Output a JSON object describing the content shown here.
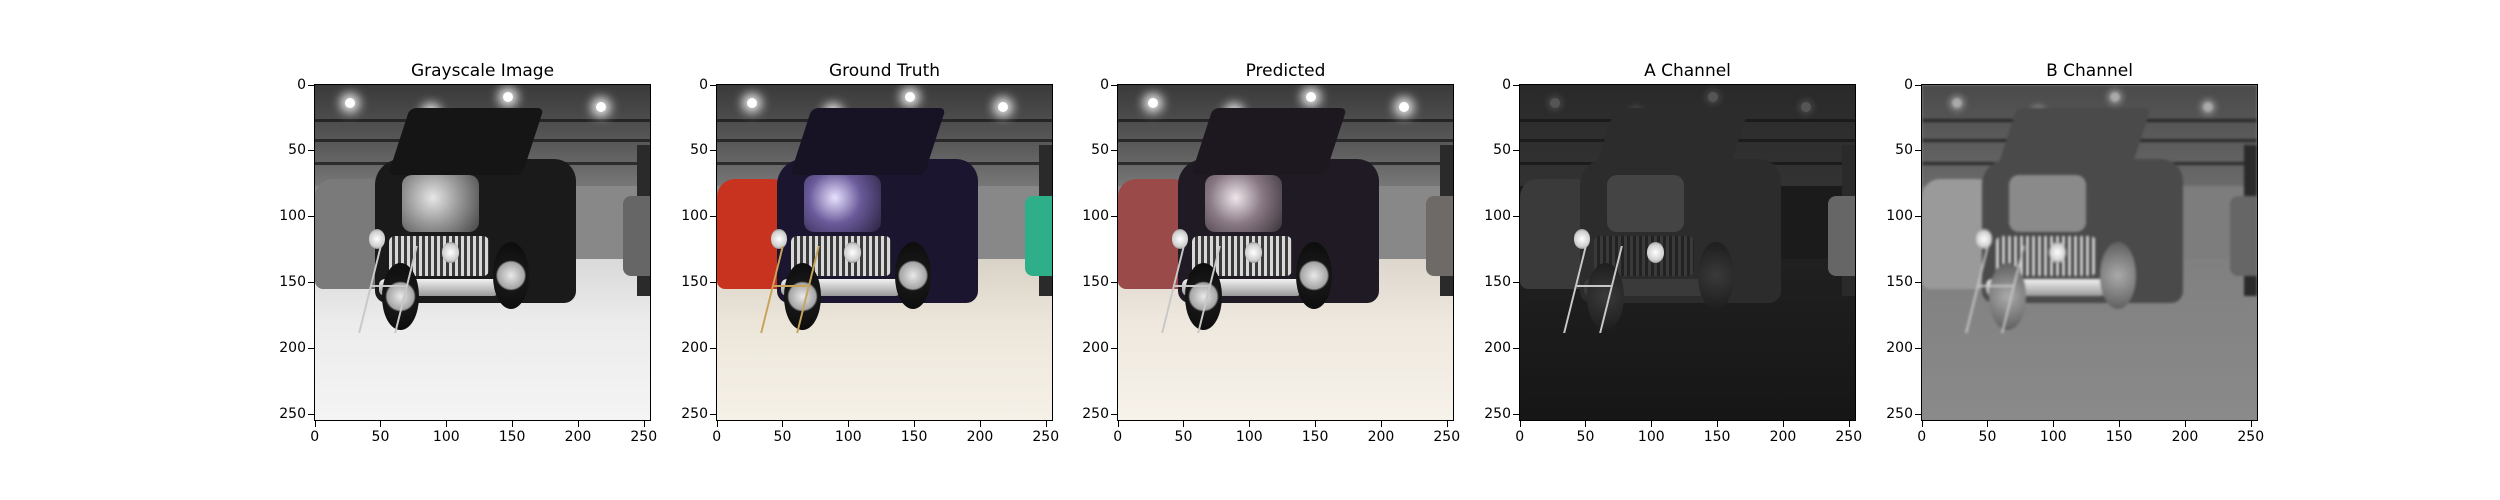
{
  "panels": [
    {
      "id": "grayscale",
      "title": "Grayscale Image",
      "variant": "gray"
    },
    {
      "id": "ground-truth",
      "title": "Ground Truth",
      "variant": "gt"
    },
    {
      "id": "predicted",
      "title": "Predicted",
      "variant": "pred"
    },
    {
      "id": "a-channel",
      "title": "A Channel",
      "variant": "chan-a"
    },
    {
      "id": "b-channel",
      "title": "B Channel",
      "variant": "chan-b"
    }
  ],
  "axes": {
    "x_ticks": [
      "0",
      "50",
      "100",
      "150",
      "200",
      "250"
    ],
    "y_ticks": [
      "0",
      "50",
      "100",
      "150",
      "200",
      "250"
    ],
    "xlim": [
      0,
      256
    ],
    "ylim": [
      256,
      0
    ]
  }
}
